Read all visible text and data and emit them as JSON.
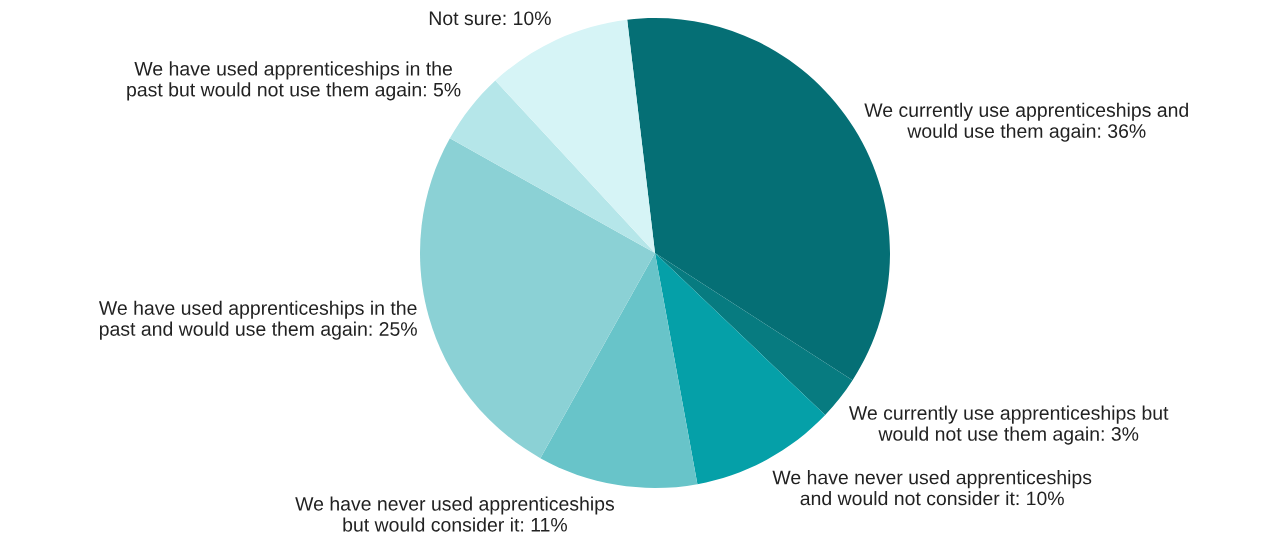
{
  "chart_data": {
    "type": "pie",
    "categories": [
      "We currently use apprenticeships and\nwould use them again",
      "We currently use apprenticeships but\nwould not use them again",
      "We have never used apprenticeships\nand would not consider it",
      "We have never used apprenticeships\nbut would consider it",
      "We have used apprenticeships in the\npast and would use them again",
      "We have used apprenticeships in the\npast but would not use them again",
      "Not sure"
    ],
    "values": [
      36,
      3,
      10,
      11,
      25,
      5,
      10
    ],
    "value_labels": [
      "36%",
      "3%",
      "10%",
      "11%",
      "25%",
      "5%",
      "10%"
    ],
    "colors": [
      "#056f75",
      "#077b80",
      "#05a0a8",
      "#68c4c9",
      "#8bd1d5",
      "#b5e6e9",
      "#d6f4f6"
    ]
  }
}
